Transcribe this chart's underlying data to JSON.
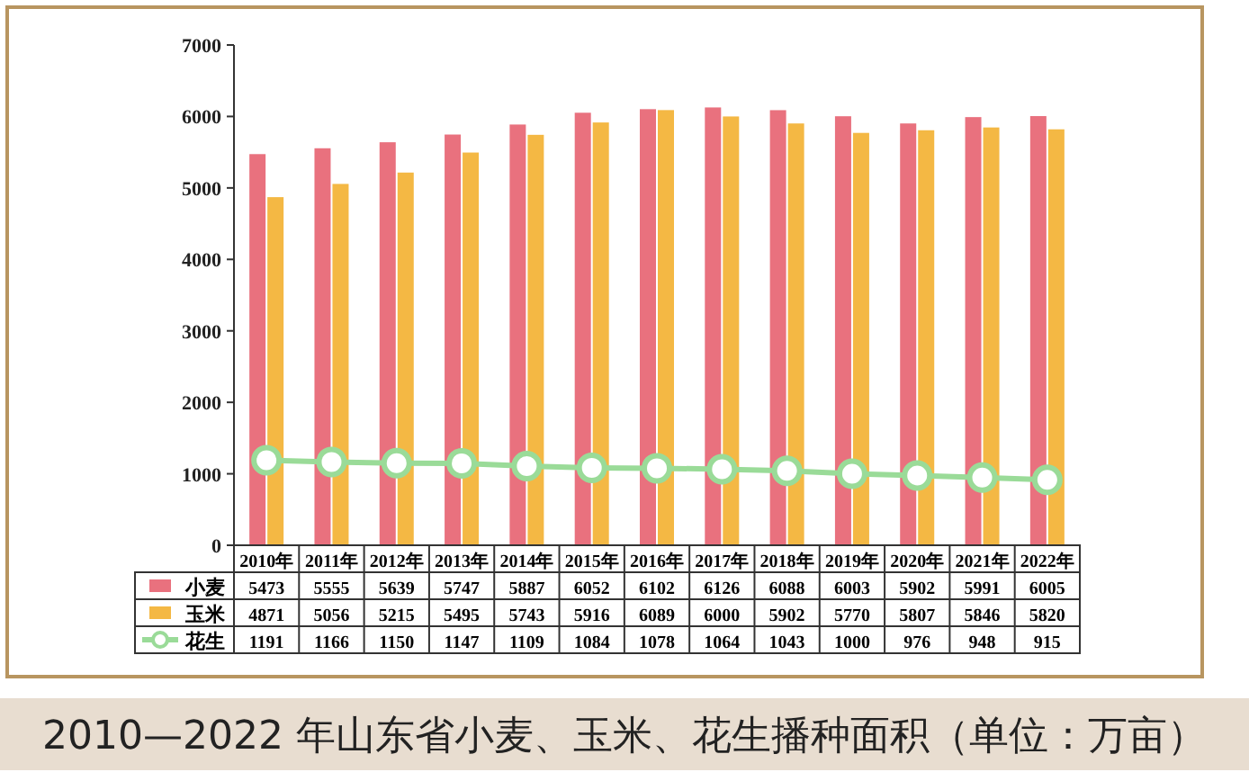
{
  "chart_data": {
    "type": "bar",
    "title": "2010—2022 年山东省小麦、玉米、花生播种面积（单位：万亩）",
    "categories": [
      "2010年",
      "2011年",
      "2012年",
      "2013年",
      "2014年",
      "2015年",
      "2016年",
      "2017年",
      "2018年",
      "2019年",
      "2020年",
      "2021年",
      "2022年"
    ],
    "series": [
      {
        "name": "小麦",
        "color": "#e9717e",
        "values": [
          5473,
          5555,
          5639,
          5747,
          5887,
          6052,
          6102,
          6126,
          6088,
          6003,
          5902,
          5991,
          6005
        ]
      },
      {
        "name": "玉米",
        "color": "#f4b844",
        "values": [
          4871,
          5056,
          5215,
          5495,
          5743,
          5916,
          6089,
          6000,
          5902,
          5770,
          5807,
          5846,
          5820
        ]
      },
      {
        "name": "花生",
        "color": "#9adb98",
        "type": "line",
        "marker": "circle",
        "values": [
          1191,
          1166,
          1150,
          1147,
          1109,
          1084,
          1078,
          1064,
          1043,
          1000,
          976,
          948,
          915
        ]
      }
    ],
    "ylim": [
      0,
      7000
    ],
    "yticks": [
      0,
      1000,
      2000,
      3000,
      4000,
      5000,
      6000,
      7000
    ],
    "data_labels": true,
    "legend": "bottom",
    "grid": false
  }
}
